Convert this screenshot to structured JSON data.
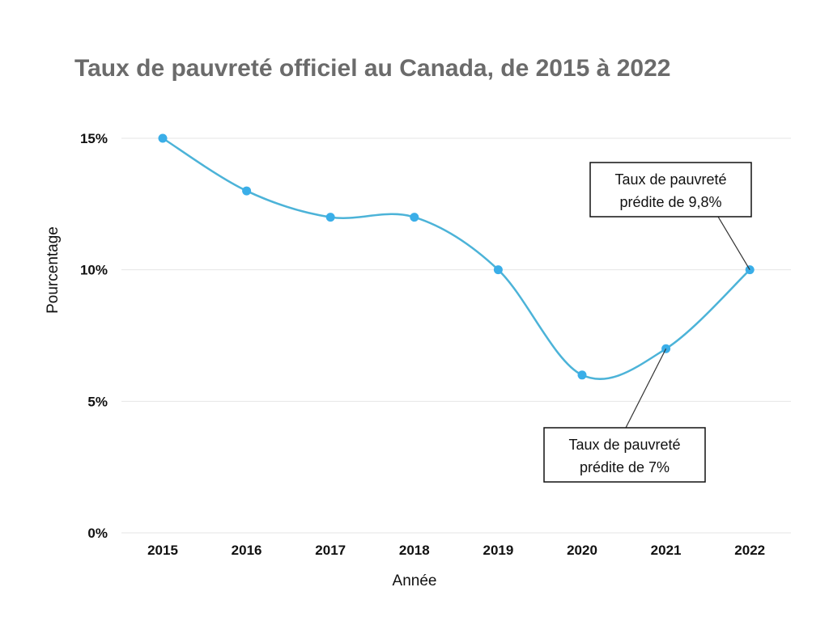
{
  "chart_data": {
    "type": "line",
    "title": "Taux de pauvreté officiel au Canada, de 2015 à 2022",
    "xlabel": "Année",
    "ylabel": "Pourcentage",
    "categories": [
      "2015",
      "2016",
      "2017",
      "2018",
      "2019",
      "2020",
      "2021",
      "2022"
    ],
    "series": [
      {
        "name": "Taux de pauvreté",
        "values": [
          15,
          13,
          12,
          12,
          10,
          6,
          7,
          10
        ],
        "color": "#4cb3d8"
      }
    ],
    "ylim": [
      0,
      15
    ],
    "yticks": [
      0,
      5,
      10,
      15
    ],
    "ytick_labels": [
      "0%",
      "5%",
      "10%",
      "15%"
    ],
    "grid": true,
    "smooth": true,
    "annotations": [
      {
        "lines": [
          "Taux de pauvreté",
          "prédite de 9,8%"
        ],
        "target_category": "2022"
      },
      {
        "lines": [
          "Taux de pauvreté",
          "prédite de 7%"
        ],
        "target_category": "2021"
      }
    ]
  }
}
